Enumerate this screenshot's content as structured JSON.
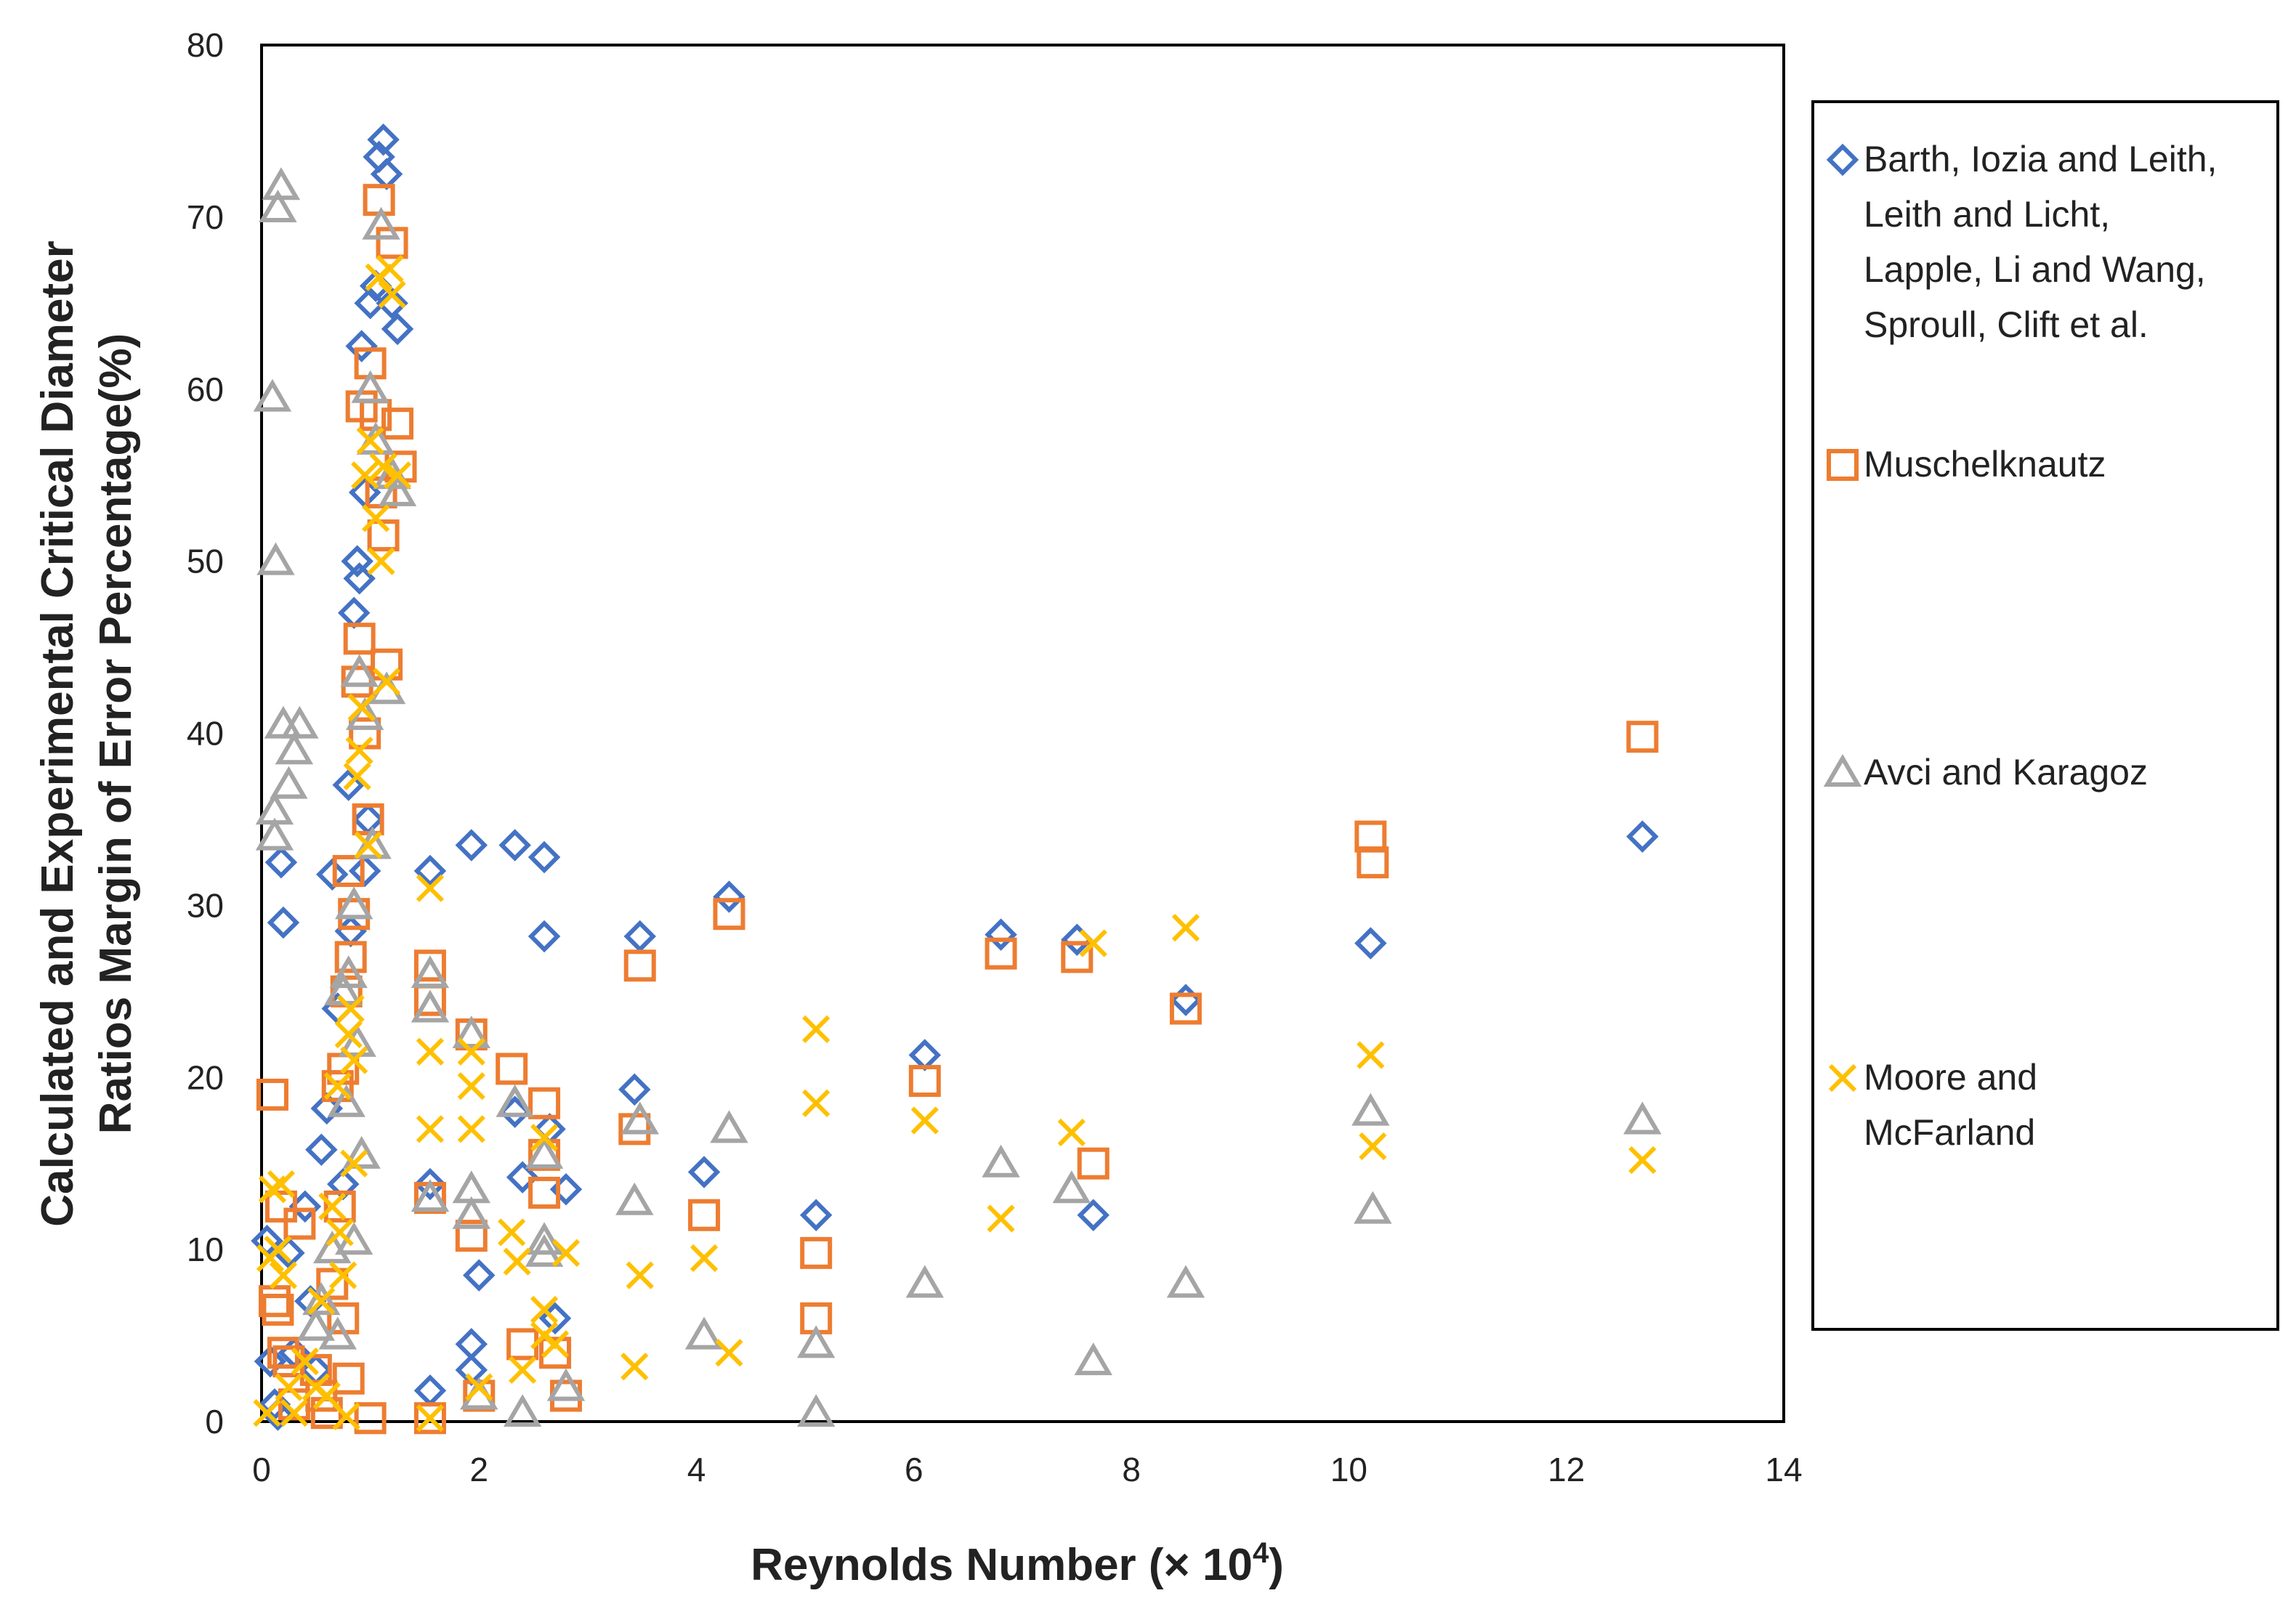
{
  "chart_data": {
    "type": "scatter",
    "title": "",
    "xlabel": "Reynolds Number  (× 10",
    "xlabel_superscript": "4",
    "xlabel_suffix": ")",
    "ylabel_line1": "Calculated and Experimental Critical Diameter",
    "ylabel_line2": "Ratios Margin of Error Percentage(%)",
    "xlim": [
      0,
      14
    ],
    "ylim": [
      0,
      80
    ],
    "x_ticks": [
      "0",
      "2",
      "4",
      "6",
      "8",
      "10",
      "12",
      "14"
    ],
    "y_ticks": [
      "0",
      "10",
      "20",
      "30",
      "40",
      "50",
      "60",
      "70",
      "80"
    ],
    "grid": false,
    "legend_position": "right",
    "series": [
      {
        "name": "Barth, Iozia and Leith, Leith and Licht, Lapple, Li and Wang, Sproull, Clift et al.",
        "legend_lines": [
          "Barth, Iozia and Leith,",
          "Leith and Licht,",
          "Lapple, Li and Wang,",
          "Sproull, Clift et al."
        ],
        "marker": "diamond",
        "color": "#4472C4",
        "points": [
          [
            0.05,
            10.5
          ],
          [
            0.08,
            3.5
          ],
          [
            0.12,
            1.0
          ],
          [
            0.15,
            0.4
          ],
          [
            0.18,
            32.5
          ],
          [
            0.2,
            29.0
          ],
          [
            0.25,
            9.8
          ],
          [
            0.3,
            4.0
          ],
          [
            0.4,
            12.5
          ],
          [
            0.45,
            7.0
          ],
          [
            0.5,
            3.0
          ],
          [
            0.55,
            15.8
          ],
          [
            0.6,
            18.2
          ],
          [
            0.65,
            31.8
          ],
          [
            0.7,
            24.0
          ],
          [
            0.75,
            13.8
          ],
          [
            0.8,
            37.0
          ],
          [
            0.85,
            47.0
          ],
          [
            0.88,
            50.0
          ],
          [
            0.9,
            49.0
          ],
          [
            0.92,
            62.5
          ],
          [
            0.95,
            54.0
          ],
          [
            1.0,
            65.0
          ],
          [
            1.05,
            66.0
          ],
          [
            1.08,
            73.5
          ],
          [
            1.12,
            74.5
          ],
          [
            1.15,
            72.5
          ],
          [
            1.2,
            65.0
          ],
          [
            1.25,
            63.5
          ],
          [
            0.82,
            28.5
          ],
          [
            0.95,
            32.0
          ],
          [
            0.98,
            35.0
          ],
          [
            1.55,
            32.0
          ],
          [
            1.55,
            13.8
          ],
          [
            1.55,
            1.8
          ],
          [
            1.93,
            33.5
          ],
          [
            1.93,
            4.5
          ],
          [
            1.93,
            3.0
          ],
          [
            2.0,
            8.5
          ],
          [
            2.33,
            33.5
          ],
          [
            2.33,
            18.0
          ],
          [
            2.4,
            14.2
          ],
          [
            2.6,
            32.8
          ],
          [
            2.6,
            28.2
          ],
          [
            2.65,
            17.0
          ],
          [
            2.7,
            6.0
          ],
          [
            2.8,
            13.5
          ],
          [
            3.43,
            19.3
          ],
          [
            3.48,
            28.2
          ],
          [
            4.07,
            14.5
          ],
          [
            4.3,
            30.5
          ],
          [
            5.1,
            12.0
          ],
          [
            6.1,
            21.3
          ],
          [
            6.8,
            28.3
          ],
          [
            7.5,
            28.0
          ],
          [
            7.65,
            12.0
          ],
          [
            8.5,
            24.5
          ],
          [
            10.2,
            27.8
          ],
          [
            12.7,
            34.0
          ]
        ]
      },
      {
        "name": "Muschelknautz",
        "legend_lines": [
          "Muschelknautz"
        ],
        "marker": "square",
        "color": "#ED7D31",
        "points": [
          [
            0.1,
            19.0
          ],
          [
            0.12,
            7.0
          ],
          [
            0.15,
            6.5
          ],
          [
            0.18,
            12.5
          ],
          [
            0.2,
            4.0
          ],
          [
            0.25,
            3.5
          ],
          [
            0.3,
            1.0
          ],
          [
            0.35,
            11.5
          ],
          [
            0.5,
            3.0
          ],
          [
            0.55,
            1.5
          ],
          [
            0.6,
            0.5
          ],
          [
            0.7,
            19.5
          ],
          [
            0.72,
            12.5
          ],
          [
            0.75,
            20.5
          ],
          [
            0.78,
            25.0
          ],
          [
            0.8,
            32.0
          ],
          [
            0.82,
            27.0
          ],
          [
            0.85,
            29.5
          ],
          [
            0.88,
            43.0
          ],
          [
            0.9,
            45.5
          ],
          [
            0.92,
            59.0
          ],
          [
            0.95,
            40.0
          ],
          [
            0.98,
            35.0
          ],
          [
            1.0,
            61.5
          ],
          [
            1.05,
            58.5
          ],
          [
            1.08,
            71.0
          ],
          [
            1.1,
            54.0
          ],
          [
            1.12,
            51.5
          ],
          [
            1.15,
            44.0
          ],
          [
            1.2,
            68.5
          ],
          [
            1.25,
            58.0
          ],
          [
            1.28,
            55.5
          ],
          [
            0.8,
            2.5
          ],
          [
            0.75,
            6.0
          ],
          [
            0.65,
            8.0
          ],
          [
            1.0,
            0.2
          ],
          [
            1.55,
            26.5
          ],
          [
            1.55,
            24.5
          ],
          [
            1.55,
            13.0
          ],
          [
            1.55,
            0.2
          ],
          [
            1.93,
            22.5
          ],
          [
            1.93,
            10.8
          ],
          [
            2.0,
            1.5
          ],
          [
            2.3,
            20.5
          ],
          [
            2.4,
            4.5
          ],
          [
            2.6,
            18.5
          ],
          [
            2.6,
            15.5
          ],
          [
            2.6,
            13.3
          ],
          [
            2.7,
            4.0
          ],
          [
            2.8,
            1.5
          ],
          [
            3.43,
            17.0
          ],
          [
            3.48,
            26.5
          ],
          [
            4.07,
            12.0
          ],
          [
            4.3,
            29.5
          ],
          [
            5.1,
            9.8
          ],
          [
            5.1,
            6.0
          ],
          [
            6.1,
            19.8
          ],
          [
            6.8,
            27.2
          ],
          [
            7.5,
            27.0
          ],
          [
            7.65,
            15.0
          ],
          [
            8.5,
            24.0
          ],
          [
            10.2,
            34.0
          ],
          [
            10.22,
            32.5
          ],
          [
            12.7,
            39.8
          ]
        ]
      },
      {
        "name": "Avci and Karagoz",
        "legend_lines": [
          "Avci and Karagoz"
        ],
        "marker": "triangle",
        "color": "#A5A5A5",
        "points": [
          [
            0.1,
            59.5
          ],
          [
            0.12,
            35.5
          ],
          [
            0.13,
            50.0
          ],
          [
            0.15,
            70.5
          ],
          [
            0.18,
            71.8
          ],
          [
            0.2,
            40.5
          ],
          [
            0.25,
            37.0
          ],
          [
            0.3,
            39.0
          ],
          [
            0.35,
            40.5
          ],
          [
            0.12,
            34.0
          ],
          [
            0.5,
            5.5
          ],
          [
            0.55,
            7.0
          ],
          [
            0.65,
            10.0
          ],
          [
            0.7,
            5.0
          ],
          [
            0.75,
            25.0
          ],
          [
            0.8,
            26.0
          ],
          [
            0.85,
            30.0
          ],
          [
            0.88,
            22.0
          ],
          [
            0.9,
            43.5
          ],
          [
            0.92,
            15.5
          ],
          [
            0.95,
            41.0
          ],
          [
            1.0,
            60.0
          ],
          [
            1.02,
            33.5
          ],
          [
            1.05,
            57.0
          ],
          [
            1.1,
            69.5
          ],
          [
            1.15,
            42.5
          ],
          [
            1.2,
            55.0
          ],
          [
            1.25,
            54.0
          ],
          [
            0.78,
            18.5
          ],
          [
            0.85,
            10.5
          ],
          [
            1.55,
            26.0
          ],
          [
            1.55,
            24.0
          ],
          [
            1.55,
            13.0
          ],
          [
            1.93,
            22.5
          ],
          [
            1.93,
            13.5
          ],
          [
            1.93,
            12.0
          ],
          [
            2.0,
            1.5
          ],
          [
            2.33,
            18.5
          ],
          [
            2.4,
            0.5
          ],
          [
            2.6,
            10.5
          ],
          [
            2.6,
            9.8
          ],
          [
            2.6,
            15.5
          ],
          [
            2.8,
            2.0
          ],
          [
            3.43,
            12.8
          ],
          [
            3.48,
            17.5
          ],
          [
            4.07,
            5.0
          ],
          [
            4.3,
            17.0
          ],
          [
            5.1,
            4.5
          ],
          [
            5.1,
            0.5
          ],
          [
            6.1,
            8.0
          ],
          [
            6.8,
            15.0
          ],
          [
            7.45,
            13.5
          ],
          [
            7.65,
            3.5
          ],
          [
            8.5,
            8.0
          ],
          [
            10.2,
            18.0
          ],
          [
            10.22,
            12.3
          ],
          [
            12.7,
            17.5
          ]
        ]
      },
      {
        "name": "Moore and McFarland",
        "legend_lines": [
          "Moore and",
          "McFarland"
        ],
        "marker": "x",
        "color": "#FFC000",
        "points": [
          [
            0.05,
            0.5
          ],
          [
            0.08,
            9.5
          ],
          [
            0.1,
            13.5
          ],
          [
            0.15,
            10.0
          ],
          [
            0.18,
            13.8
          ],
          [
            0.2,
            8.5
          ],
          [
            0.25,
            2.0
          ],
          [
            0.3,
            0.5
          ],
          [
            0.4,
            3.5
          ],
          [
            0.5,
            2.0
          ],
          [
            0.55,
            7.0
          ],
          [
            0.6,
            1.5
          ],
          [
            0.65,
            12.5
          ],
          [
            0.7,
            19.5
          ],
          [
            0.72,
            11.0
          ],
          [
            0.75,
            8.5
          ],
          [
            0.8,
            22.5
          ],
          [
            0.82,
            24.0
          ],
          [
            0.85,
            21.0
          ],
          [
            0.88,
            37.5
          ],
          [
            0.9,
            39.0
          ],
          [
            0.92,
            41.5
          ],
          [
            0.95,
            55.0
          ],
          [
            0.98,
            33.5
          ],
          [
            1.0,
            57.0
          ],
          [
            1.05,
            52.5
          ],
          [
            1.08,
            66.5
          ],
          [
            1.1,
            50.0
          ],
          [
            1.12,
            55.5
          ],
          [
            1.15,
            43.0
          ],
          [
            1.18,
            67.0
          ],
          [
            1.2,
            65.5
          ],
          [
            1.25,
            55.0
          ],
          [
            0.85,
            15.0
          ],
          [
            0.78,
            0.3
          ],
          [
            1.55,
            31.0
          ],
          [
            1.55,
            21.5
          ],
          [
            1.55,
            17.0
          ],
          [
            1.55,
            0.2
          ],
          [
            1.93,
            21.5
          ],
          [
            1.93,
            17.0
          ],
          [
            1.93,
            19.5
          ],
          [
            2.0,
            2.0
          ],
          [
            2.3,
            11.0
          ],
          [
            2.35,
            9.3
          ],
          [
            2.4,
            3.0
          ],
          [
            2.6,
            16.5
          ],
          [
            2.6,
            6.5
          ],
          [
            2.6,
            5.0
          ],
          [
            2.7,
            4.5
          ],
          [
            2.8,
            9.8
          ],
          [
            3.43,
            3.2
          ],
          [
            3.48,
            8.5
          ],
          [
            4.07,
            9.5
          ],
          [
            4.3,
            4.0
          ],
          [
            5.1,
            22.8
          ],
          [
            5.1,
            18.5
          ],
          [
            6.1,
            17.5
          ],
          [
            6.8,
            11.8
          ],
          [
            7.45,
            16.8
          ],
          [
            7.65,
            27.8
          ],
          [
            8.5,
            28.7
          ],
          [
            10.2,
            21.3
          ],
          [
            10.22,
            16.0
          ],
          [
            12.7,
            15.2
          ]
        ]
      }
    ]
  }
}
